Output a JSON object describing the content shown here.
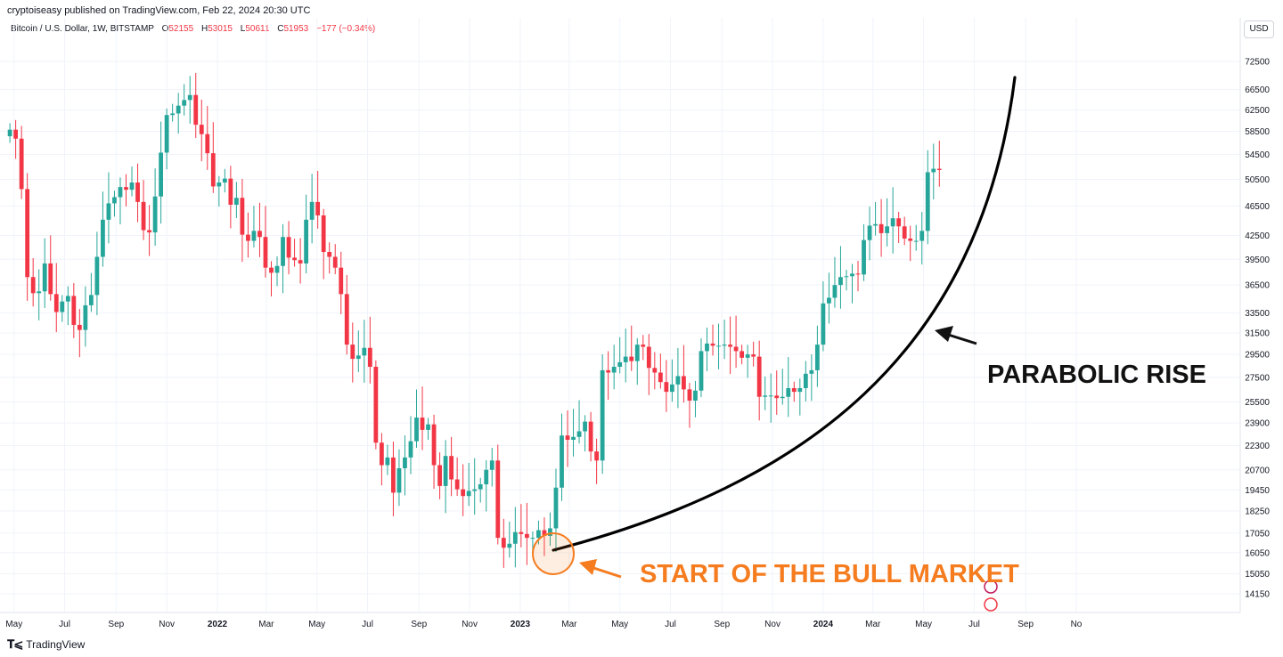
{
  "attribution": "cryptoiseasy published on TradingView.com, Feb 22, 2024 20:30 UTC",
  "legend": {
    "symbol": "Bitcoin / U.S. Dollar, 1W, BITSTAMP",
    "o_label": "O",
    "o": "52155",
    "h_label": "H",
    "h": "53015",
    "l_label": "L",
    "l": "50611",
    "c_label": "C",
    "c": "51953",
    "change": "−177 (−0.34%)"
  },
  "currency": "USD",
  "footer": {
    "brand": "TradingView"
  },
  "annotations": {
    "parabolic": "PARABOLIC RISE",
    "start": "START OF THE BULL MARKET"
  },
  "colors": {
    "up": "#26a69a",
    "down": "#f23645",
    "curve": "#000000",
    "highlight": "#f57c1f",
    "grid": "#f0f3fa"
  },
  "chart_data": {
    "type": "candlestick",
    "scale": "log",
    "y_ticks": [
      14150,
      15050,
      16050,
      17050,
      18250,
      19450,
      20700,
      22300,
      23900,
      25500,
      27500,
      29500,
      31500,
      33500,
      36500,
      39500,
      42500,
      46500,
      50500,
      54500,
      58500,
      62500,
      66500,
      72500
    ],
    "y_tick_labels": [
      "14150",
      "15050",
      "16050",
      "17050",
      "18250",
      "19450",
      "20700",
      "22300",
      "23900",
      "25500",
      "27500",
      "29500",
      "31500",
      "33500",
      "36500",
      "39500",
      "42500",
      "46500",
      "50500",
      "54500",
      "58500",
      "62500",
      "66500",
      "72500"
    ],
    "x_tick_labels": [
      "May",
      "Jul",
      "Sep",
      "Nov",
      "2022",
      "Mar",
      "May",
      "Jul",
      "Sep",
      "Nov",
      "2023",
      "Mar",
      "May",
      "Jul",
      "Sep",
      "Nov",
      "2024",
      "Mar",
      "May",
      "Jul",
      "Sep",
      "No"
    ],
    "x_tick_bold": [
      false,
      false,
      false,
      false,
      true,
      false,
      false,
      false,
      false,
      false,
      true,
      false,
      false,
      false,
      false,
      false,
      true,
      false,
      false,
      false,
      false,
      false
    ],
    "first_week": "2021-04-26",
    "closes": [
      58800,
      57200,
      49000,
      37400,
      35600,
      35800,
      39000,
      35500,
      33600,
      34700,
      35300,
      32300,
      31800,
      34300,
      35400,
      39800,
      44600,
      46900,
      47800,
      49300,
      48900,
      50000,
      47100,
      43200,
      42900,
      47900,
      54800,
      61500,
      61800,
      63300,
      64400,
      65400,
      59700,
      58000,
      54700,
      49400,
      50000,
      50600,
      46700,
      47700,
      42600,
      41800,
      43100,
      42300,
      38500,
      37900,
      38700,
      42300,
      39700,
      39400,
      39000,
      44600,
      47100,
      45200,
      40400,
      39800,
      38500,
      35500,
      30400,
      29100,
      29400,
      30100,
      28400,
      22500,
      21000,
      21500,
      19300,
      20800,
      21500,
      22600,
      24300,
      23400,
      23800,
      21000,
      19700,
      21600,
      20100,
      19500,
      19100,
      19400,
      19500,
      19800,
      20700,
      21300,
      16800,
      16300,
      16500,
      17100,
      17000,
      16800,
      16800,
      17200,
      16900,
      17300,
      19600,
      23000,
      22700,
      22900,
      23300,
      24000,
      21900,
      21300,
      28100,
      27900,
      28400,
      28800,
      29300,
      28900,
      30400,
      30200,
      28300,
      27900,
      27100,
      26300,
      26900,
      27600,
      26500,
      25600,
      26400,
      29800,
      30500,
      30300,
      30300,
      30400,
      30200,
      29800,
      29200,
      29500,
      29300,
      25900,
      26000,
      26000,
      25800,
      25900,
      26600,
      26300,
      26600,
      27800,
      28100,
      30400,
      34500,
      35100,
      36500,
      37400,
      37500,
      37800,
      37700,
      41900,
      43800,
      44000,
      42800,
      43700,
      44800,
      43700,
      42100,
      41800,
      41800,
      43100,
      51600,
      52150,
      51953
    ]
  }
}
